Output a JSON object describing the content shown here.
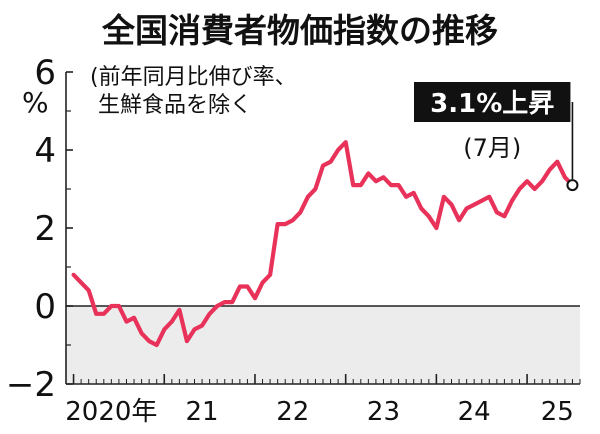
{
  "chart_data": {
    "type": "line",
    "title": "全国消費者物価指数の推移",
    "subtitle_lines": [
      "(前年同月比伸び率、",
      "生鮮食品を除く"
    ],
    "y_unit": "%",
    "ylim": [
      -2,
      6
    ],
    "y_ticks": [
      -2,
      0,
      2,
      4,
      6
    ],
    "x_range": [
      "2019-12",
      "2025-08"
    ],
    "x_labels": [
      {
        "label": "2020年",
        "at": "2020-06"
      },
      {
        "label": "21",
        "at": "2021-06"
      },
      {
        "label": "22",
        "at": "2022-06"
      },
      {
        "label": "23",
        "at": "2023-06"
      },
      {
        "label": "24",
        "at": "2024-06"
      },
      {
        "label": "25",
        "at": "2025-05"
      }
    ],
    "negative_region_shaded": true,
    "line_color": "#e8325a",
    "series": [
      {
        "x": [
          "2020-01",
          "2020-02",
          "2020-03",
          "2020-04",
          "2020-05",
          "2020-06",
          "2020-07",
          "2020-08",
          "2020-09",
          "2020-10",
          "2020-11",
          "2020-12",
          "2021-01",
          "2021-02",
          "2021-03",
          "2021-04",
          "2021-05",
          "2021-06",
          "2021-07",
          "2021-08",
          "2021-09",
          "2021-10",
          "2021-11",
          "2021-12",
          "2022-01",
          "2022-02",
          "2022-03",
          "2022-04",
          "2022-05",
          "2022-06",
          "2022-07",
          "2022-08",
          "2022-09",
          "2022-10",
          "2022-11",
          "2022-12",
          "2023-01",
          "2023-02",
          "2023-03",
          "2023-04",
          "2023-05",
          "2023-06",
          "2023-07",
          "2023-08",
          "2023-09",
          "2023-10",
          "2023-11",
          "2023-12",
          "2024-01",
          "2024-02",
          "2024-03",
          "2024-04",
          "2024-05",
          "2024-06",
          "2024-07",
          "2024-08",
          "2024-09",
          "2024-10",
          "2024-11",
          "2024-12",
          "2025-01",
          "2025-02",
          "2025-03",
          "2025-04",
          "2025-05",
          "2025-06",
          "2025-07"
        ],
        "values": [
          0.8,
          0.6,
          0.4,
          -0.2,
          -0.2,
          0.0,
          0.0,
          -0.4,
          -0.3,
          -0.7,
          -0.9,
          -1.0,
          -0.6,
          -0.4,
          -0.1,
          -0.9,
          -0.6,
          -0.5,
          -0.2,
          0.0,
          0.1,
          0.1,
          0.5,
          0.5,
          0.2,
          0.6,
          0.8,
          2.1,
          2.1,
          2.2,
          2.4,
          2.8,
          3.0,
          3.6,
          3.7,
          4.0,
          4.2,
          3.1,
          3.1,
          3.4,
          3.2,
          3.3,
          3.1,
          3.1,
          2.8,
          2.9,
          2.5,
          2.3,
          2.0,
          2.8,
          2.6,
          2.2,
          2.5,
          2.6,
          2.7,
          2.8,
          2.4,
          2.3,
          2.7,
          3.0,
          3.2,
          3.0,
          3.2,
          3.5,
          3.7,
          3.3,
          3.1
        ]
      }
    ],
    "callout": {
      "text": "3.1%上昇",
      "sub": "(7月)",
      "value": 3.1,
      "at": "2025-07"
    }
  }
}
